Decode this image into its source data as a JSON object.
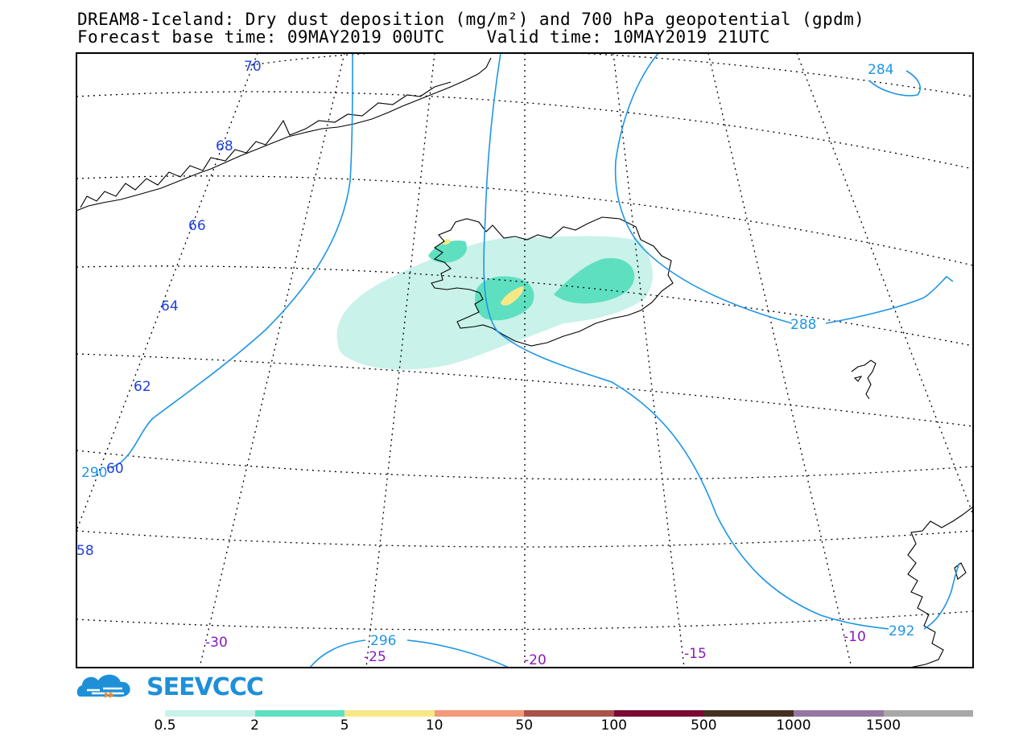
{
  "title": {
    "line1": "DREAM8-Iceland: Dry dust deposition (mg/m²) and 700 hPa geopotential (gpdm)",
    "line2": "Forecast base time: 09MAY2019 00UTC    Valid time: 10MAY2019 21UTC"
  },
  "latitude_labels": [
    "70",
    "68",
    "66",
    "64",
    "62",
    "60",
    "58"
  ],
  "longitude_labels": [
    "-30",
    "-25",
    "-20",
    "-15",
    "-10"
  ],
  "contour_labels": [
    "284",
    "288",
    "290",
    "292",
    "296"
  ],
  "logo": {
    "text": "SEEVCCC"
  },
  "legend": {
    "colors": [
      "#c8f2ea",
      "#5ee0c0",
      "#f7e887",
      "#f39a78",
      "#a9514a",
      "#7a0a32",
      "#45301f",
      "#9577a0",
      "#a8a8a8"
    ],
    "labels": [
      "0.5",
      "2",
      "5",
      "10",
      "50",
      "100",
      "500",
      "1000",
      "1500"
    ]
  },
  "colors": {
    "contour": "#1e96e6",
    "lat_label": "#2040e0",
    "lon_label": "#8a1ab8"
  }
}
